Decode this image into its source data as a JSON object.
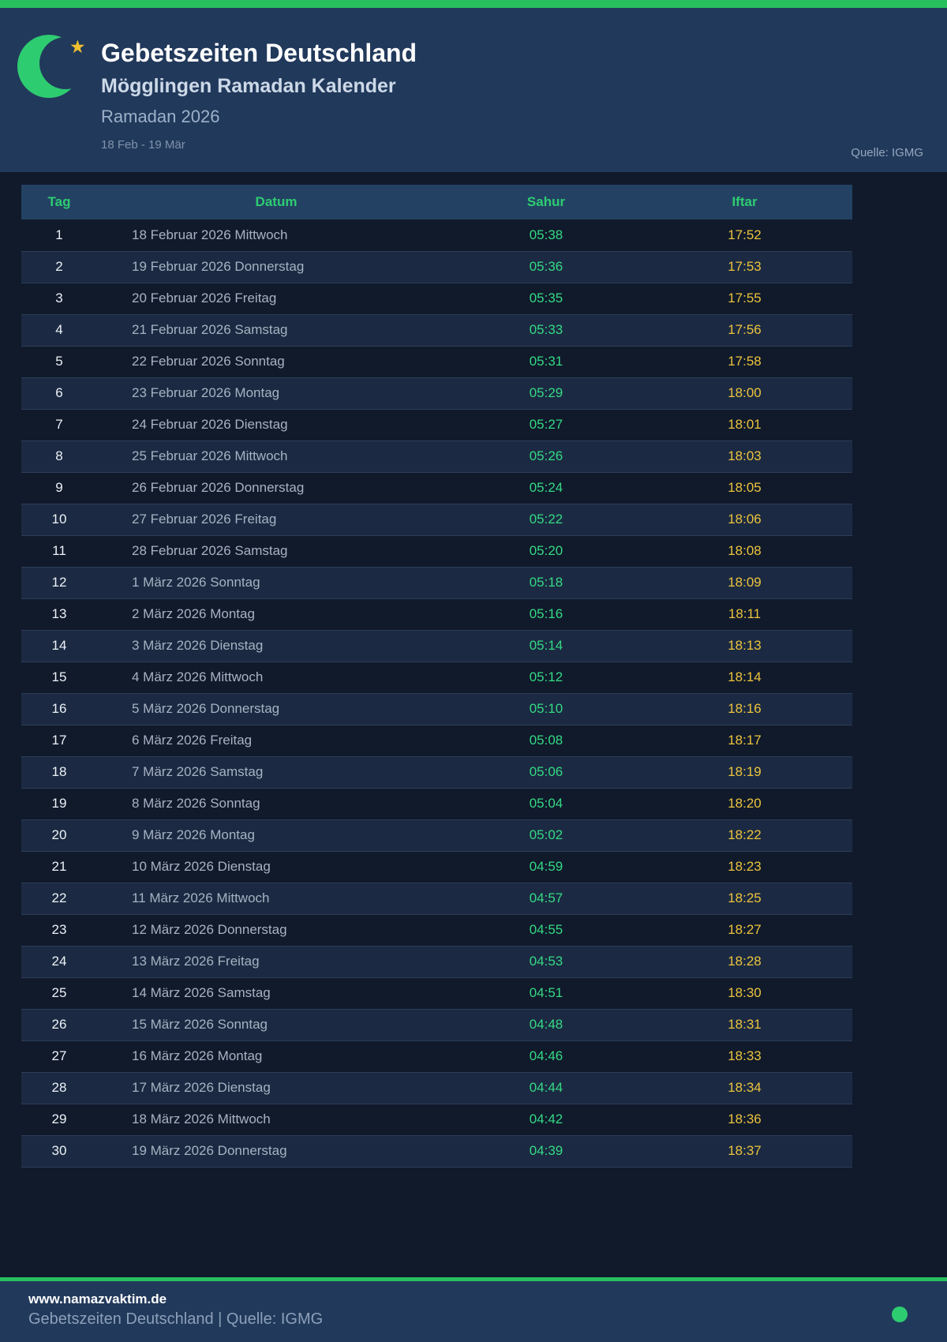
{
  "header": {
    "title": "Gebetszeiten Deutschland",
    "subtitle": "Mögglingen Ramadan Kalender",
    "season": "Ramadan 2026",
    "date_range": "18 Feb - 19 Mär",
    "source": "Quelle: IGMG",
    "moon_icon": "crescent-moon",
    "star_icon": "star"
  },
  "table": {
    "columns": [
      "Tag",
      "Datum",
      "Sahur",
      "Iftar"
    ],
    "rows": [
      {
        "tag": "1",
        "datum": "18 Februar 2026 Mittwoch",
        "sahur": "05:38",
        "iftar": "17:52"
      },
      {
        "tag": "2",
        "datum": "19 Februar 2026 Donnerstag",
        "sahur": "05:36",
        "iftar": "17:53"
      },
      {
        "tag": "3",
        "datum": "20 Februar 2026 Freitag",
        "sahur": "05:35",
        "iftar": "17:55"
      },
      {
        "tag": "4",
        "datum": "21 Februar 2026 Samstag",
        "sahur": "05:33",
        "iftar": "17:56"
      },
      {
        "tag": "5",
        "datum": "22 Februar 2026 Sonntag",
        "sahur": "05:31",
        "iftar": "17:58"
      },
      {
        "tag": "6",
        "datum": "23 Februar 2026 Montag",
        "sahur": "05:29",
        "iftar": "18:00"
      },
      {
        "tag": "7",
        "datum": "24 Februar 2026 Dienstag",
        "sahur": "05:27",
        "iftar": "18:01"
      },
      {
        "tag": "8",
        "datum": "25 Februar 2026 Mittwoch",
        "sahur": "05:26",
        "iftar": "18:03"
      },
      {
        "tag": "9",
        "datum": "26 Februar 2026 Donnerstag",
        "sahur": "05:24",
        "iftar": "18:05"
      },
      {
        "tag": "10",
        "datum": "27 Februar 2026 Freitag",
        "sahur": "05:22",
        "iftar": "18:06"
      },
      {
        "tag": "11",
        "datum": "28 Februar 2026 Samstag",
        "sahur": "05:20",
        "iftar": "18:08"
      },
      {
        "tag": "12",
        "datum": "1 März 2026 Sonntag",
        "sahur": "05:18",
        "iftar": "18:09"
      },
      {
        "tag": "13",
        "datum": "2 März 2026 Montag",
        "sahur": "05:16",
        "iftar": "18:11"
      },
      {
        "tag": "14",
        "datum": "3 März 2026 Dienstag",
        "sahur": "05:14",
        "iftar": "18:13"
      },
      {
        "tag": "15",
        "datum": "4 März 2026 Mittwoch",
        "sahur": "05:12",
        "iftar": "18:14"
      },
      {
        "tag": "16",
        "datum": "5 März 2026 Donnerstag",
        "sahur": "05:10",
        "iftar": "18:16"
      },
      {
        "tag": "17",
        "datum": "6 März 2026 Freitag",
        "sahur": "05:08",
        "iftar": "18:17"
      },
      {
        "tag": "18",
        "datum": "7 März 2026 Samstag",
        "sahur": "05:06",
        "iftar": "18:19"
      },
      {
        "tag": "19",
        "datum": "8 März 2026 Sonntag",
        "sahur": "05:04",
        "iftar": "18:20"
      },
      {
        "tag": "20",
        "datum": "9 März 2026 Montag",
        "sahur": "05:02",
        "iftar": "18:22"
      },
      {
        "tag": "21",
        "datum": "10 März 2026 Dienstag",
        "sahur": "04:59",
        "iftar": "18:23"
      },
      {
        "tag": "22",
        "datum": "11 März 2026 Mittwoch",
        "sahur": "04:57",
        "iftar": "18:25"
      },
      {
        "tag": "23",
        "datum": "12 März 2026 Donnerstag",
        "sahur": "04:55",
        "iftar": "18:27"
      },
      {
        "tag": "24",
        "datum": "13 März 2026 Freitag",
        "sahur": "04:53",
        "iftar": "18:28"
      },
      {
        "tag": "25",
        "datum": "14 März 2026 Samstag",
        "sahur": "04:51",
        "iftar": "18:30"
      },
      {
        "tag": "26",
        "datum": "15 März 2026 Sonntag",
        "sahur": "04:48",
        "iftar": "18:31"
      },
      {
        "tag": "27",
        "datum": "16 März 2026 Montag",
        "sahur": "04:46",
        "iftar": "18:33"
      },
      {
        "tag": "28",
        "datum": "17 März 2026 Dienstag",
        "sahur": "04:44",
        "iftar": "18:34"
      },
      {
        "tag": "29",
        "datum": "18 März 2026 Mittwoch",
        "sahur": "04:42",
        "iftar": "18:36"
      },
      {
        "tag": "30",
        "datum": "19 März 2026 Donnerstag",
        "sahur": "04:39",
        "iftar": "18:37"
      }
    ]
  },
  "footer": {
    "website": "www.namazvaktim.de",
    "tagline": "Gebetszeiten Deutschland | Quelle: IGMG",
    "status_icon": "green-dot"
  },
  "colors": {
    "accent_green": "#28bf5f",
    "header_band": "#21395b",
    "page_background": "#101a2b",
    "table_head_green": "#2ecc71",
    "sahur_green": "#35d984",
    "iftar_yellow": "#ecc33d"
  }
}
